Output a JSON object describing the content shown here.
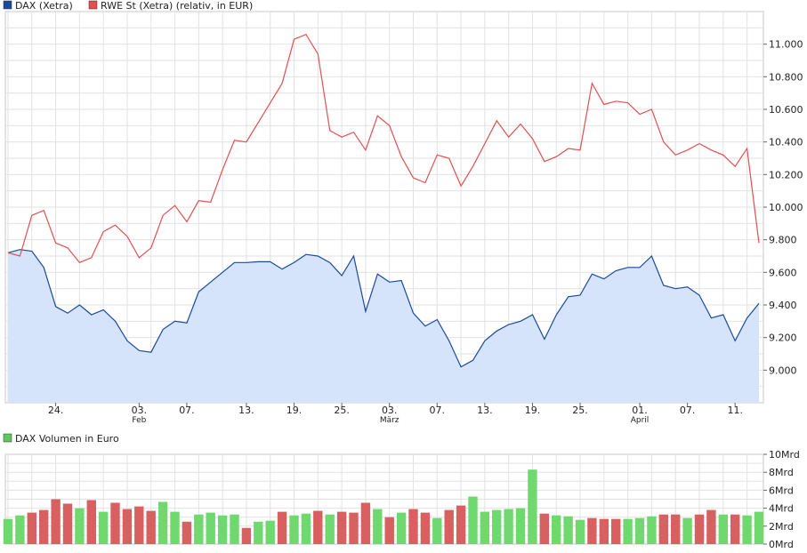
{
  "chart_data": [
    {
      "type": "line",
      "legend": [
        {
          "label": "DAX (Xetra)",
          "color": "#1a4a9c"
        },
        {
          "label": "RWE St (Xetra) (relativ, in EUR)",
          "color": "#e05050"
        }
      ],
      "ylim": [
        8800,
        11200
      ],
      "ytick_values": [
        9000,
        9200,
        9400,
        9600,
        9800,
        10000,
        10200,
        10400,
        10600,
        10800,
        11000
      ],
      "ytick_labels": [
        "9.000",
        "9.200",
        "9.400",
        "9.600",
        "9.800",
        "10.000",
        "10.200",
        "10.400",
        "10.600",
        "10.800",
        "11.000"
      ],
      "xtick_labels": [
        {
          "index": 4,
          "label": "24."
        },
        {
          "index": 11,
          "label": "03.",
          "month": "Feb"
        },
        {
          "index": 15,
          "label": "07."
        },
        {
          "index": 20,
          "label": "13."
        },
        {
          "index": 24,
          "label": "19."
        },
        {
          "index": 28,
          "label": "25."
        },
        {
          "index": 32,
          "label": "03.",
          "month": "März"
        },
        {
          "index": 36,
          "label": "07."
        },
        {
          "index": 40,
          "label": "13."
        },
        {
          "index": 44,
          "label": "19."
        },
        {
          "index": 48,
          "label": "25."
        },
        {
          "index": 53,
          "label": "01.",
          "month": "April"
        },
        {
          "index": 57,
          "label": "07."
        },
        {
          "index": 61,
          "label": "11."
        }
      ],
      "series": [
        {
          "name": "DAX (Xetra)",
          "fill": "#d6e4fb",
          "values": [
            9720,
            9740,
            9730,
            9630,
            9390,
            9350,
            9400,
            9340,
            9370,
            9300,
            9180,
            9120,
            9110,
            9250,
            9300,
            9290,
            9480,
            9540,
            9600,
            9660,
            9660,
            9665,
            9665,
            9620,
            9660,
            9710,
            9700,
            9660,
            9580,
            9700,
            9360,
            9590,
            9540,
            9550,
            9350,
            9270,
            9310,
            9180,
            9020,
            9060,
            9180,
            9240,
            9280,
            9300,
            9340,
            9190,
            9340,
            9450,
            9460,
            9590,
            9560,
            9610,
            9630,
            9630,
            9700,
            9520,
            9500,
            9510,
            9460,
            9320,
            9340,
            9180,
            9320,
            9410
          ]
        },
        {
          "name": "RWE St (Xetra) (relativ, in EUR)",
          "values": [
            9720,
            9700,
            9950,
            9980,
            9780,
            9750,
            9660,
            9690,
            9850,
            9890,
            9820,
            9690,
            9750,
            9950,
            10010,
            9910,
            10040,
            10030,
            10230,
            10410,
            10400,
            10520,
            10640,
            10760,
            11030,
            11060,
            10940,
            10470,
            10430,
            10460,
            10350,
            10560,
            10500,
            10310,
            10180,
            10150,
            10320,
            10300,
            10130,
            10250,
            10390,
            10530,
            10430,
            10510,
            10420,
            10280,
            10310,
            10360,
            10350,
            10760,
            10630,
            10650,
            10640,
            10570,
            10600,
            10400,
            10320,
            10350,
            10390,
            10350,
            10320,
            10250,
            10360,
            9780
          ]
        }
      ]
    },
    {
      "type": "bar",
      "legend": [
        {
          "label": "DAX Volumen in Euro",
          "color": "#5ec75e"
        }
      ],
      "ylim": [
        0,
        10
      ],
      "ytick_values": [
        0,
        2,
        4,
        6,
        8,
        10
      ],
      "ytick_labels": [
        "0Mrd",
        "2Mrd",
        "4Mrd",
        "6Mrd",
        "8Mrd",
        "10Mrd"
      ],
      "colors": {
        "up": "#6fd86f",
        "down": "#d96060"
      },
      "values": [
        2.8,
        3.2,
        3.5,
        3.8,
        5.0,
        4.5,
        4.0,
        4.9,
        3.6,
        4.6,
        3.9,
        4.2,
        3.7,
        4.7,
        3.6,
        2.5,
        3.3,
        3.5,
        3.2,
        3.3,
        1.8,
        2.5,
        2.6,
        3.6,
        3.2,
        3.4,
        3.7,
        3.3,
        3.6,
        3.5,
        4.6,
        3.9,
        3.0,
        3.5,
        3.9,
        3.5,
        2.9,
        3.8,
        4.3,
        5.3,
        3.6,
        3.8,
        3.9,
        4.0,
        8.3,
        3.4,
        3.2,
        3.1,
        2.7,
        2.9,
        2.8,
        2.8,
        2.8,
        2.9,
        3.1,
        3.3,
        3.3,
        2.9,
        3.3,
        3.8,
        3.3,
        3.3,
        3.2,
        3.6
      ],
      "directions": [
        "up",
        "up",
        "down",
        "down",
        "down",
        "down",
        "up",
        "down",
        "up",
        "down",
        "down",
        "down",
        "down",
        "up",
        "up",
        "down",
        "up",
        "up",
        "up",
        "up",
        "down",
        "up",
        "up",
        "down",
        "up",
        "up",
        "down",
        "up",
        "down",
        "down",
        "down",
        "up",
        "down",
        "up",
        "down",
        "down",
        "up",
        "down",
        "down",
        "up",
        "up",
        "up",
        "up",
        "up",
        "up",
        "down",
        "up",
        "up",
        "up",
        "down",
        "down",
        "down",
        "up",
        "up",
        "up",
        "down",
        "down",
        "up",
        "down",
        "down",
        "up",
        "down",
        "up",
        "up"
      ]
    }
  ]
}
